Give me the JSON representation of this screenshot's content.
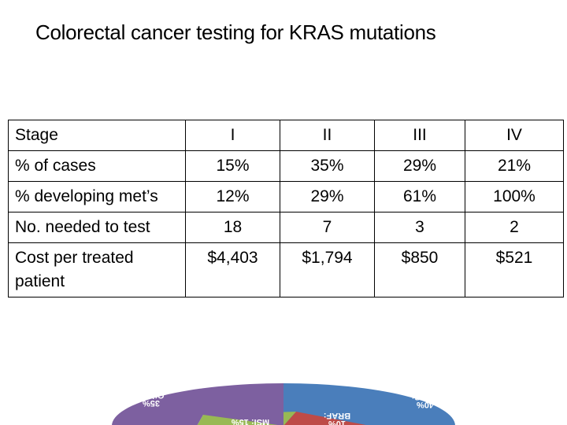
{
  "title": "Colorectal cancer testing for KRAS mutations",
  "table": {
    "header": [
      "Stage",
      "I",
      "II",
      "III",
      "IV"
    ],
    "rows": [
      [
        "% of cases",
        "15%",
        "35%",
        "29%",
        "21%"
      ],
      [
        "% developing met’s",
        "12%",
        "29%",
        "61%",
        "100%"
      ],
      [
        "No. needed to test",
        "18",
        "7",
        "3",
        "2"
      ],
      [
        "Cost per treated patient",
        "$4,403",
        "$1,794",
        "$850",
        "$521"
      ]
    ]
  },
  "pie": {
    "slices": [
      {
        "label": "KRAS:",
        "sublabel": "40%",
        "color": "#4a7ebb"
      },
      {
        "label": "BRAF:",
        "sublabel": "10%",
        "color": "#be4b48"
      },
      {
        "label": "MSI: 15%",
        "color": "#98b954"
      },
      {
        "label": "Other:",
        "sublabel": "35%",
        "color": "#7d60a0"
      }
    ]
  }
}
